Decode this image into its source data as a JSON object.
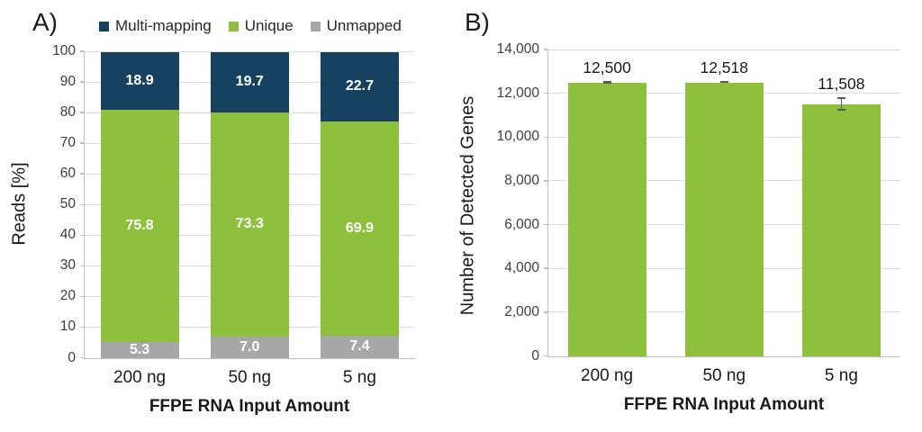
{
  "panels": {
    "a_label": "A)",
    "b_label": "B)"
  },
  "colors": {
    "navy": "#16425f",
    "green": "#8dc03d",
    "gray": "#a7a7a7",
    "gridline": "#dcdcdc",
    "axis": "#bfbfbf",
    "error_bar": "#595959",
    "text": "#1a1a1a"
  },
  "chart_data": [
    {
      "type": "bar",
      "stacked": true,
      "panel": "A",
      "categories": [
        "200 ng",
        "50 ng",
        "5 ng"
      ],
      "series": [
        {
          "name": "Unmapped",
          "color_key": "gray",
          "values": [
            5.3,
            7.0,
            7.4
          ]
        },
        {
          "name": "Unique",
          "color_key": "green",
          "values": [
            75.8,
            73.3,
            69.9
          ]
        },
        {
          "name": "Multi-mapping",
          "color_key": "navy",
          "values": [
            18.9,
            19.7,
            22.7
          ]
        }
      ],
      "legend": [
        "Multi-mapping",
        "Unique",
        "Unmapped"
      ],
      "legend_position": "top",
      "xlabel": "FFPE RNA Input Amount",
      "ylabel": "Reads [%]",
      "ylim": [
        0,
        100
      ],
      "yticks": [
        "0",
        "10",
        "20",
        "30",
        "40",
        "50",
        "60",
        "70",
        "80",
        "90",
        "100"
      ],
      "grid": true
    },
    {
      "type": "bar",
      "panel": "B",
      "categories": [
        "200 ng",
        "50 ng",
        "5 ng"
      ],
      "values": [
        12500,
        12518,
        11508
      ],
      "value_labels": [
        "12,500",
        "12,518",
        "11,508"
      ],
      "errors": [
        60,
        60,
        300
      ],
      "xlabel": "FFPE RNA Input Amount",
      "ylabel": "Number of Detected Genes",
      "ylim": [
        0,
        14000
      ],
      "yticks": [
        "0",
        "2,000",
        "4,000",
        "6,000",
        "8,000",
        "10,000",
        "12,000",
        "14,000"
      ],
      "grid": true
    }
  ]
}
